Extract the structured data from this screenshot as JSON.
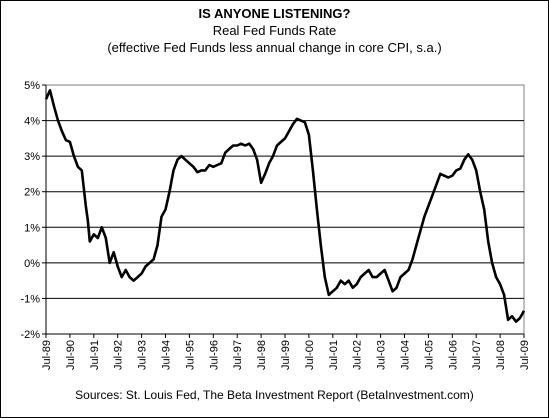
{
  "chart_data": {
    "type": "line",
    "title": "IS ANYONE LISTENING?",
    "subtitle1": "Real Fed Funds Rate",
    "subtitle2": "(effective Fed Funds less annual change in core CPI, s.a.)",
    "source": "Sources: St. Louis Fed, The Beta Investment Report (BetaInvestment.com)",
    "xlabel": "",
    "ylabel": "",
    "ylim": [
      -2,
      5
    ],
    "y_ticks": [
      -2,
      -1,
      0,
      1,
      2,
      3,
      4,
      5
    ],
    "y_tick_labels": [
      "-2%",
      "-1%",
      "0%",
      "1%",
      "2%",
      "3%",
      "4%",
      "5%"
    ],
    "x_tick_labels": [
      "Jul-89",
      "Jul-90",
      "Jul-91",
      "Jul-92",
      "Jul-93",
      "Jul-94",
      "Jul-95",
      "Jul-96",
      "Jul-97",
      "Jul-98",
      "Jul-99",
      "Jul-00",
      "Jul-01",
      "Jul-02",
      "Jul-03",
      "Jul-04",
      "Jul-05",
      "Jul-06",
      "Jul-07",
      "Jul-08",
      "Jul-09"
    ],
    "grid": true,
    "series": [
      {
        "color": "#000000",
        "points": [
          [
            "1989-07",
            4.6
          ],
          [
            "1989-09",
            4.85
          ],
          [
            "1989-11",
            4.4
          ],
          [
            "1990-01",
            4.0
          ],
          [
            "1990-03",
            3.7
          ],
          [
            "1990-05",
            3.45
          ],
          [
            "1990-07",
            3.4
          ],
          [
            "1990-09",
            3.0
          ],
          [
            "1990-11",
            2.7
          ],
          [
            "1991-01",
            2.6
          ],
          [
            "1991-03",
            1.6
          ],
          [
            "1991-04",
            1.2
          ],
          [
            "1991-05",
            0.6
          ],
          [
            "1991-07",
            0.8
          ],
          [
            "1991-09",
            0.7
          ],
          [
            "1991-11",
            1.0
          ],
          [
            "1992-01",
            0.7
          ],
          [
            "1992-03",
            0.0
          ],
          [
            "1992-05",
            0.3
          ],
          [
            "1992-07",
            -0.1
          ],
          [
            "1992-09",
            -0.4
          ],
          [
            "1992-11",
            -0.2
          ],
          [
            "1993-01",
            -0.4
          ],
          [
            "1993-03",
            -0.5
          ],
          [
            "1993-05",
            -0.4
          ],
          [
            "1993-07",
            -0.3
          ],
          [
            "1993-09",
            -0.1
          ],
          [
            "1993-11",
            0.0
          ],
          [
            "1994-01",
            0.1
          ],
          [
            "1994-03",
            0.5
          ],
          [
            "1994-05",
            1.3
          ],
          [
            "1994-07",
            1.5
          ],
          [
            "1994-09",
            2.0
          ],
          [
            "1994-11",
            2.6
          ],
          [
            "1995-01",
            2.9
          ],
          [
            "1995-03",
            3.0
          ],
          [
            "1995-05",
            2.9
          ],
          [
            "1995-07",
            2.8
          ],
          [
            "1995-09",
            2.7
          ],
          [
            "1995-11",
            2.55
          ],
          [
            "1996-01",
            2.6
          ],
          [
            "1996-03",
            2.6
          ],
          [
            "1996-05",
            2.75
          ],
          [
            "1996-07",
            2.7
          ],
          [
            "1996-09",
            2.75
          ],
          [
            "1996-11",
            2.8
          ],
          [
            "1997-01",
            3.1
          ],
          [
            "1997-03",
            3.2
          ],
          [
            "1997-05",
            3.3
          ],
          [
            "1997-07",
            3.3
          ],
          [
            "1997-09",
            3.35
          ],
          [
            "1997-11",
            3.3
          ],
          [
            "1998-01",
            3.35
          ],
          [
            "1998-03",
            3.2
          ],
          [
            "1998-05",
            2.9
          ],
          [
            "1998-07",
            2.25
          ],
          [
            "1998-09",
            2.5
          ],
          [
            "1998-11",
            2.8
          ],
          [
            "1999-01",
            3.0
          ],
          [
            "1999-03",
            3.3
          ],
          [
            "1999-05",
            3.4
          ],
          [
            "1999-07",
            3.5
          ],
          [
            "1999-09",
            3.7
          ],
          [
            "1999-11",
            3.9
          ],
          [
            "2000-01",
            4.05
          ],
          [
            "2000-03",
            4.0
          ],
          [
            "2000-05",
            3.95
          ],
          [
            "2000-07",
            3.6
          ],
          [
            "2000-09",
            2.6
          ],
          [
            "2000-11",
            1.5
          ],
          [
            "2001-01",
            0.5
          ],
          [
            "2001-03",
            -0.4
          ],
          [
            "2001-05",
            -0.9
          ],
          [
            "2001-07",
            -0.8
          ],
          [
            "2001-09",
            -0.7
          ],
          [
            "2001-11",
            -0.5
          ],
          [
            "2002-01",
            -0.6
          ],
          [
            "2002-03",
            -0.5
          ],
          [
            "2002-05",
            -0.7
          ],
          [
            "2002-07",
            -0.6
          ],
          [
            "2002-09",
            -0.4
          ],
          [
            "2002-11",
            -0.3
          ],
          [
            "2003-01",
            -0.2
          ],
          [
            "2003-03",
            -0.4
          ],
          [
            "2003-05",
            -0.4
          ],
          [
            "2003-07",
            -0.3
          ],
          [
            "2003-09",
            -0.2
          ],
          [
            "2003-11",
            -0.5
          ],
          [
            "2004-01",
            -0.8
          ],
          [
            "2004-03",
            -0.7
          ],
          [
            "2004-05",
            -0.4
          ],
          [
            "2004-07",
            -0.3
          ],
          [
            "2004-09",
            -0.2
          ],
          [
            "2004-11",
            0.1
          ],
          [
            "2005-01",
            0.5
          ],
          [
            "2005-03",
            0.9
          ],
          [
            "2005-05",
            1.3
          ],
          [
            "2005-07",
            1.6
          ],
          [
            "2005-09",
            1.9
          ],
          [
            "2005-11",
            2.2
          ],
          [
            "2006-01",
            2.5
          ],
          [
            "2006-03",
            2.45
          ],
          [
            "2006-05",
            2.4
          ],
          [
            "2006-07",
            2.45
          ],
          [
            "2006-09",
            2.6
          ],
          [
            "2006-11",
            2.65
          ],
          [
            "2007-01",
            2.9
          ],
          [
            "2007-03",
            3.05
          ],
          [
            "2007-05",
            2.9
          ],
          [
            "2007-07",
            2.6
          ],
          [
            "2007-09",
            2.0
          ],
          [
            "2007-11",
            1.5
          ],
          [
            "2008-01",
            0.6
          ],
          [
            "2008-03",
            0.0
          ],
          [
            "2008-05",
            -0.4
          ],
          [
            "2008-07",
            -0.6
          ],
          [
            "2008-09",
            -0.9
          ],
          [
            "2008-11",
            -1.6
          ],
          [
            "2009-01",
            -1.5
          ],
          [
            "2009-03",
            -1.65
          ],
          [
            "2009-05",
            -1.55
          ],
          [
            "2009-07",
            -1.35
          ]
        ]
      }
    ]
  }
}
